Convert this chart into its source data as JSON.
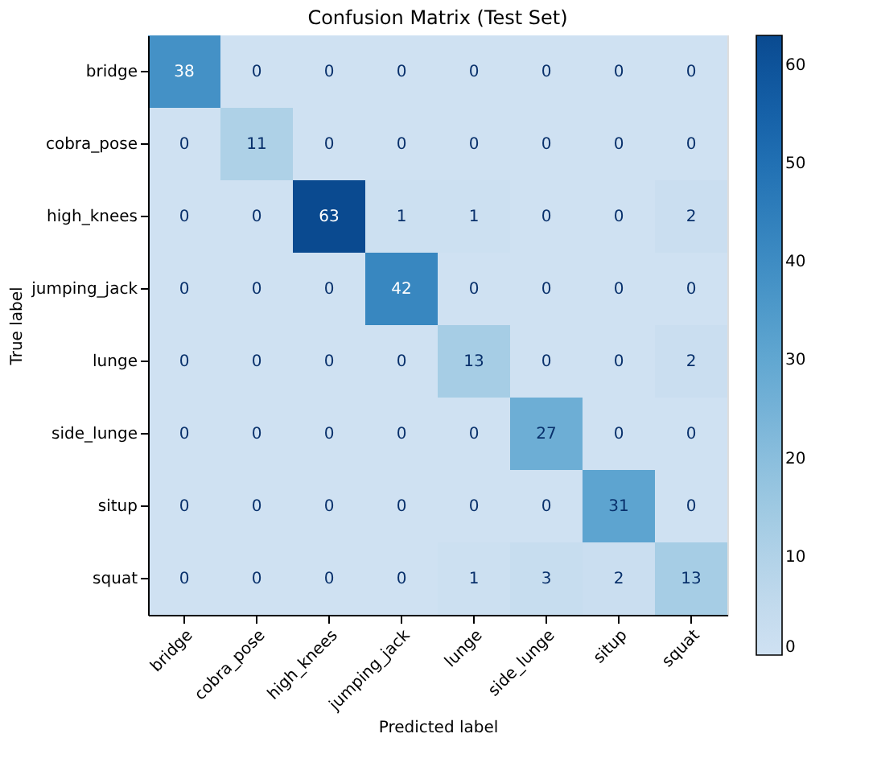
{
  "chart_data": {
    "type": "heatmap",
    "title": "Confusion Matrix (Test Set)",
    "xlabel": "Predicted label",
    "ylabel": "True label",
    "categories": [
      "bridge",
      "cobra_pose",
      "high_knees",
      "jumping_jack",
      "lunge",
      "side_lunge",
      "situp",
      "squat"
    ],
    "y_categories": [
      "bridge",
      "cobra_pose",
      "high_knees",
      "jumping_jack",
      "lunge",
      "side_lunge",
      "situp",
      "squat"
    ],
    "cells": [
      [
        38,
        0,
        0,
        0,
        0,
        0,
        0,
        0
      ],
      [
        0,
        11,
        0,
        0,
        0,
        0,
        0,
        0
      ],
      [
        0,
        0,
        63,
        1,
        1,
        0,
        0,
        2
      ],
      [
        0,
        0,
        0,
        42,
        0,
        0,
        0,
        0
      ],
      [
        0,
        0,
        0,
        0,
        13,
        0,
        0,
        2
      ],
      [
        0,
        0,
        0,
        0,
        0,
        27,
        0,
        0
      ],
      [
        0,
        0,
        0,
        0,
        0,
        0,
        31,
        0
      ],
      [
        0,
        0,
        0,
        0,
        1,
        3,
        2,
        13
      ]
    ],
    "clim": [
      0,
      63
    ],
    "cticks": [
      0,
      10,
      20,
      30,
      40,
      50,
      60
    ],
    "data_labels": true
  }
}
